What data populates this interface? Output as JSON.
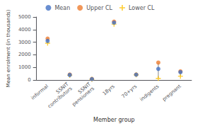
{
  "chart_data": {
    "type": "scatter",
    "categories": [
      "informal",
      "SSNIT\ncontributors",
      "SSNIT\npensioners",
      "18yrs",
      "70+yrs",
      "indigents",
      "pregnant"
    ],
    "series": [
      {
        "name": "Mean",
        "color": "#4472c4",
        "marker": "circle",
        "values": [
          3100,
          400,
          70,
          4550,
          420,
          880,
          620
        ]
      },
      {
        "name": "Upper CL",
        "color": "#ed7d31",
        "marker": "circle",
        "values": [
          3280,
          430,
          85,
          4630,
          435,
          1380,
          680
        ]
      },
      {
        "name": "Lower CL",
        "color": "#ffc000",
        "marker": "plus",
        "values": [
          2920,
          370,
          50,
          4430,
          408,
          130,
          300
        ]
      }
    ],
    "xlabel": "Member group",
    "ylabel": "Mean enrolment (in thousands)",
    "ylim": [
      0,
      5000
    ],
    "yticks": [
      0,
      1000,
      2000,
      3000,
      4000,
      5000
    ],
    "grid": false,
    "legend": "top"
  }
}
